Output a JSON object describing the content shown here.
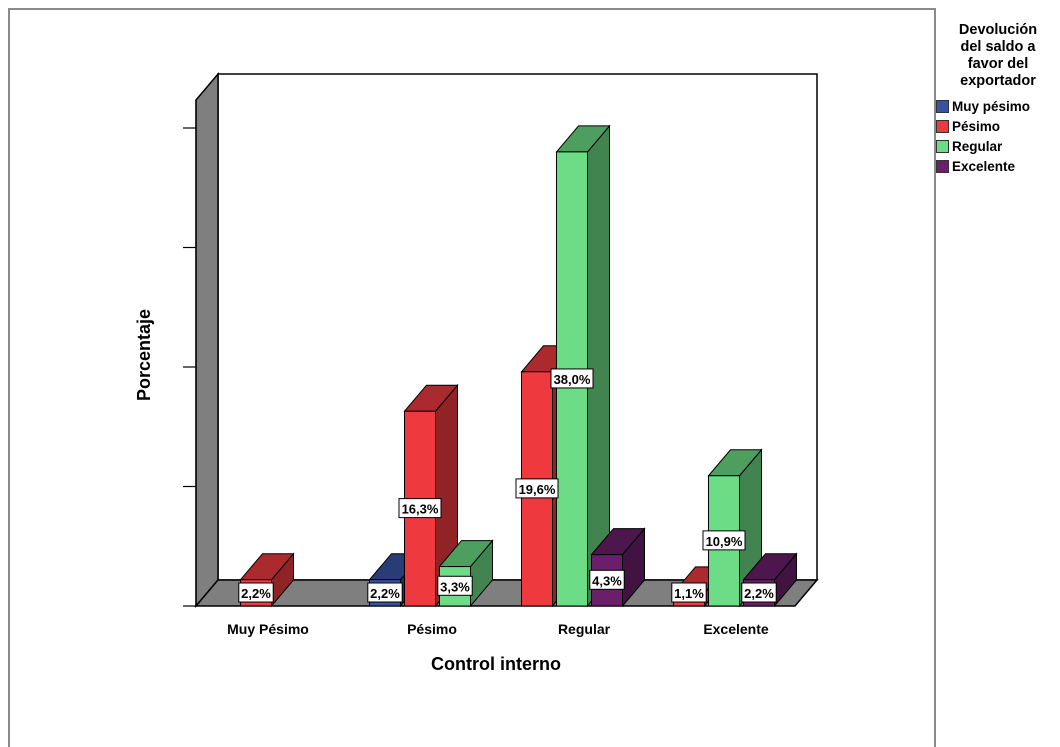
{
  "colors": {
    "Muy pésimo": "#3953a4",
    "Pésimo": "#ee3a3f",
    "Regular": "#6ddc86",
    "Excelente": "#6b1f6b"
  },
  "legend": {
    "title": "Devolución\ndel saldo a\nfavor del\nexportador",
    "items": [
      "Muy pésimo",
      "Pésimo",
      "Regular",
      "Excelente"
    ]
  },
  "chart_data": {
    "type": "bar",
    "title": "",
    "xlabel": "Control interno",
    "ylabel": "Porcentaje",
    "categories": [
      "Muy Pésimo",
      "Pésimo",
      "Regular",
      "Excelente"
    ],
    "ylim": [
      0,
      40
    ],
    "grid": false,
    "legend_position": "right",
    "series": [
      {
        "name": "Muy pésimo",
        "values": [
          null,
          2.2,
          null,
          null
        ],
        "labels": [
          null,
          "2,2%",
          null,
          null
        ]
      },
      {
        "name": "Pésimo",
        "values": [
          2.2,
          16.3,
          19.6,
          1.1
        ],
        "labels": [
          "2,2%",
          "16,3%",
          "19,6%",
          "1,1%"
        ]
      },
      {
        "name": "Regular",
        "values": [
          null,
          3.3,
          38.0,
          10.9
        ],
        "labels": [
          null,
          "3,3%",
          "38,0%",
          "10,9%"
        ]
      },
      {
        "name": "Excelente",
        "values": [
          null,
          null,
          4.3,
          2.2
        ],
        "labels": [
          null,
          null,
          "4,3%",
          "2,2%"
        ]
      }
    ]
  }
}
